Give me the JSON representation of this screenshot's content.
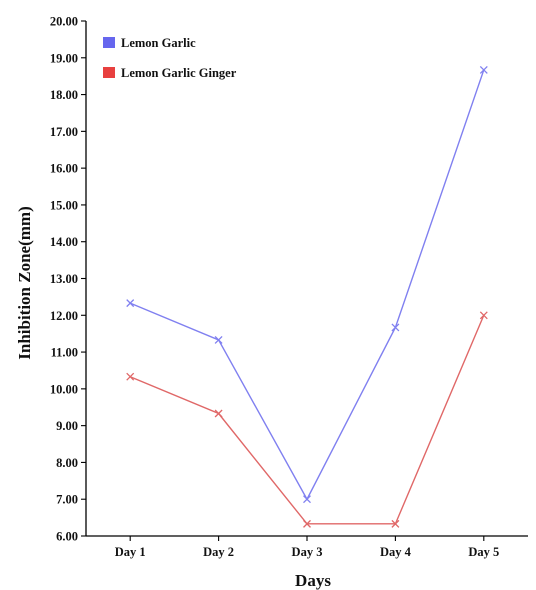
{
  "chart_data": {
    "type": "line",
    "xlabel": "Days",
    "ylabel": "Inhibition Zone(mm)",
    "categories": [
      "Day 1",
      "Day 2",
      "Day 3",
      "Day 4",
      "Day 5"
    ],
    "ylim": [
      6,
      20
    ],
    "yticks": [
      "6.00",
      "7.00",
      "8.00",
      "9.00",
      "10.00",
      "11.00",
      "12.00",
      "13.00",
      "14.00",
      "15.00",
      "16.00",
      "17.00",
      "18.00",
      "19.00",
      "20.00"
    ],
    "series": [
      {
        "name": "Lemon Garlic",
        "color": "#8080f0",
        "legend_color": "#6666ee",
        "values": [
          12.33,
          11.33,
          7.0,
          11.67,
          18.67
        ]
      },
      {
        "name": "Lemon Garlic Ginger",
        "color": "#e06868",
        "legend_color": "#e8403f",
        "values": [
          10.33,
          9.33,
          6.33,
          6.33,
          12.0
        ]
      }
    ],
    "marker": "x",
    "grid": false,
    "legend_position": "top-left"
  }
}
